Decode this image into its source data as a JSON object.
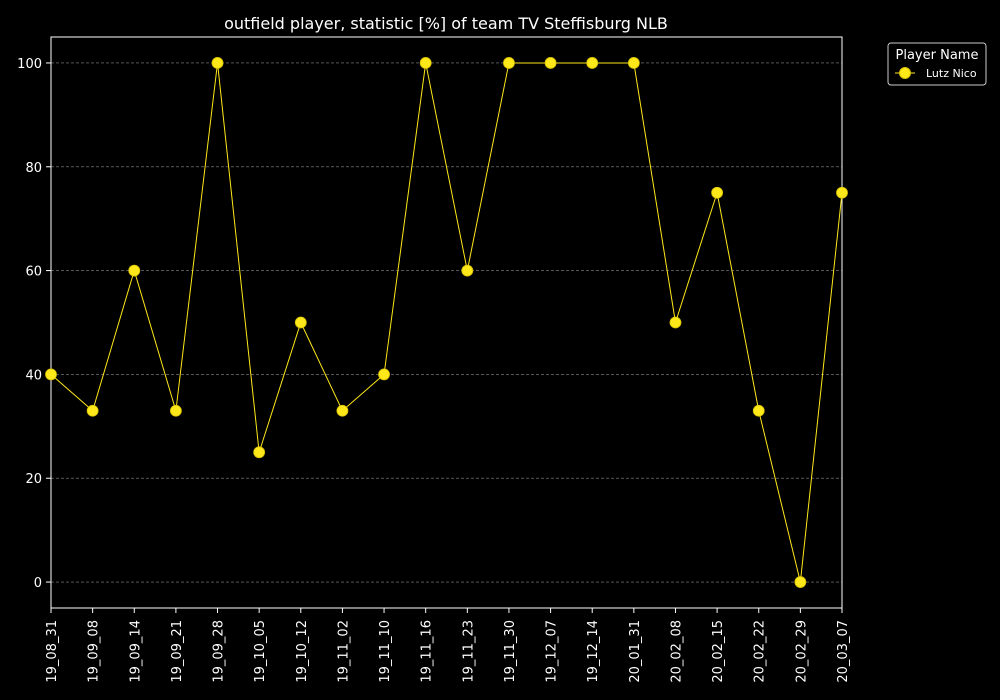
{
  "colors": {
    "background": "#000000",
    "axes": "#ffffff",
    "grid": "#8a8a8a",
    "series": "#ffe81a",
    "series_edge": "#d8c200"
  },
  "chart_data": {
    "type": "line",
    "title": "outfield player, statistic [%] of team TV Steffisburg NLB",
    "xlabel": "",
    "ylabel": "",
    "categories": [
      "19_08_31",
      "19_09_08",
      "19_09_14",
      "19_09_21",
      "19_09_28",
      "19_10_05",
      "19_10_12",
      "19_11_02",
      "19_11_10",
      "19_11_16",
      "19_11_23",
      "19_11_30",
      "19_12_07",
      "19_12_14",
      "20_01_31",
      "20_02_08",
      "20_02_15",
      "20_02_22",
      "20_02_29",
      "20_03_07"
    ],
    "series": [
      {
        "name": "Lutz Nico",
        "values": [
          40,
          33,
          60,
          33,
          100,
          25,
          50,
          33,
          40,
          100,
          60,
          100,
          100,
          100,
          100,
          50,
          75,
          33,
          0,
          75
        ]
      }
    ],
    "ylim": [
      -5,
      105
    ],
    "yticks": [
      0,
      20,
      40,
      60,
      80,
      100
    ],
    "ytick_labels": [
      "0",
      "20",
      "40",
      "60",
      "80",
      "100"
    ],
    "grid": "horizontal, dashed",
    "legend": {
      "title": "Player Name",
      "placement": "outside top-right"
    }
  }
}
